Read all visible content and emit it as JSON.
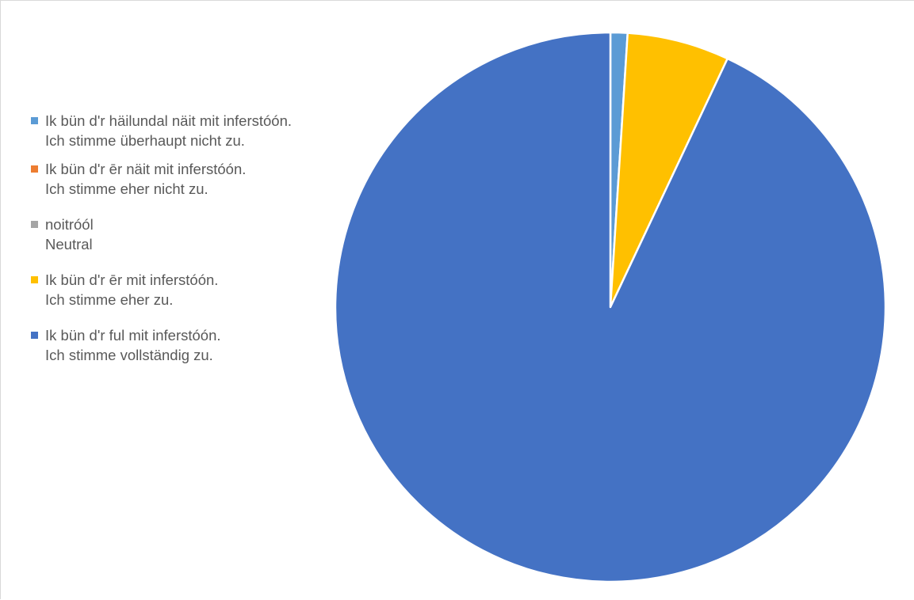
{
  "chart_data": {
    "type": "pie",
    "legend_position": "left",
    "categories": [
      "Ik bün d'r häilundal näit mit inferstóón.\nIch stimme überhaupt nicht zu.",
      "Ik bün d'r ēr näit mit inferstóón.\nIch stimme eher nicht zu.",
      "noitróól\nNeutral",
      "Ik bün d'r ēr mit inferstóón.\nIch stimme eher zu.",
      "Ik bün d'r ful mit inferstóón.\nIch stimme vollständig zu."
    ],
    "values": [
      1,
      0,
      0,
      6,
      93
    ],
    "colors": [
      "#5B9BD5",
      "#ED7D31",
      "#A5A5A5",
      "#FFC000",
      "#4472C4"
    ]
  }
}
